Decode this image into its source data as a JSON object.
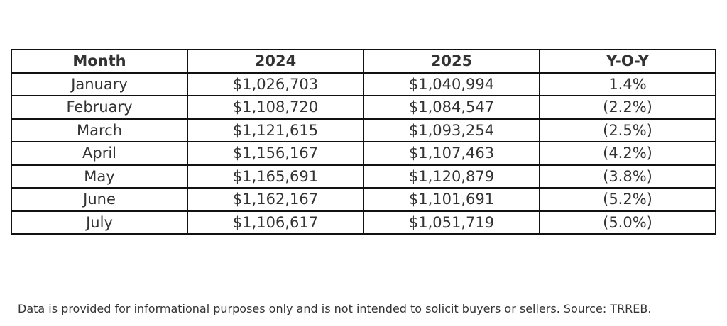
{
  "chart_data": {
    "type": "table",
    "columns": [
      "Month",
      "2024",
      "2025",
      "Y-O-Y"
    ],
    "rows": [
      [
        "January",
        "$1,026,703",
        "$1,040,994",
        "1.4%"
      ],
      [
        "February",
        "$1,108,720",
        "$1,084,547",
        "(2.2%)"
      ],
      [
        "March",
        "$1,121,615",
        "$1,093,254",
        "(2.5%)"
      ],
      [
        "April",
        "$1,156,167",
        "$1,107,463",
        "(4.2%)"
      ],
      [
        "May",
        "$1,165,691",
        "$1,120,879",
        "(3.8%)"
      ],
      [
        "June",
        "$1,162,167",
        "$1,101,691",
        "(5.2%)"
      ],
      [
        "July",
        "$1,106,617",
        "$1,051,719",
        "(5.0%)"
      ]
    ]
  },
  "footnote": "Data is provided for informational purposes only and is not intended to solicit buyers or sellers. Source: TRREB.",
  "colors": {
    "text": "#333333",
    "border": "#111111",
    "background": "#ffffff"
  }
}
